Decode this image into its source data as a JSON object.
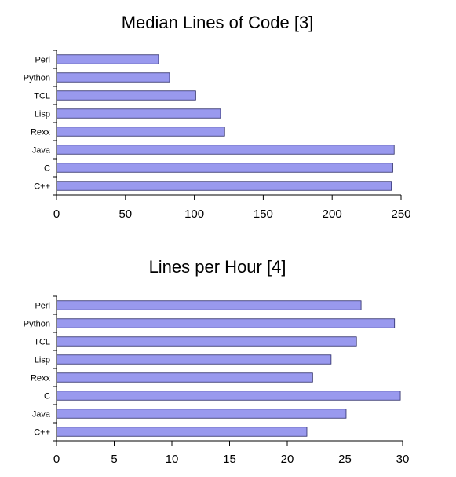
{
  "chart_data": [
    {
      "type": "bar",
      "orientation": "horizontal",
      "title": "Median Lines of Code [3]",
      "categories": [
        "Perl",
        "Python",
        "TCL",
        "Lisp",
        "Rexx",
        "Java",
        "C",
        "C++"
      ],
      "values": [
        74,
        82,
        101,
        119,
        122,
        245,
        244,
        243
      ],
      "xlim": [
        0,
        250
      ],
      "xticks": [
        "0",
        "50",
        "100",
        "150",
        "200",
        "250"
      ],
      "grid": false,
      "legend": "none",
      "bar_color": "#9999ee",
      "bar_edge_color": "#2a2a66"
    },
    {
      "type": "bar",
      "orientation": "horizontal",
      "title": "Lines per Hour [4]",
      "categories": [
        "Perl",
        "Python",
        "TCL",
        "Lisp",
        "Rexx",
        "C",
        "Java",
        "C++"
      ],
      "values": [
        26.4,
        29.3,
        26.0,
        23.8,
        22.2,
        29.8,
        25.1,
        21.7
      ],
      "xlim": [
        0,
        30
      ],
      "xticks": [
        "0",
        "5",
        "10",
        "15",
        "20",
        "25",
        "30"
      ],
      "grid": false,
      "legend": "none",
      "bar_color": "#9999ee",
      "bar_edge_color": "#2a2a66"
    }
  ]
}
